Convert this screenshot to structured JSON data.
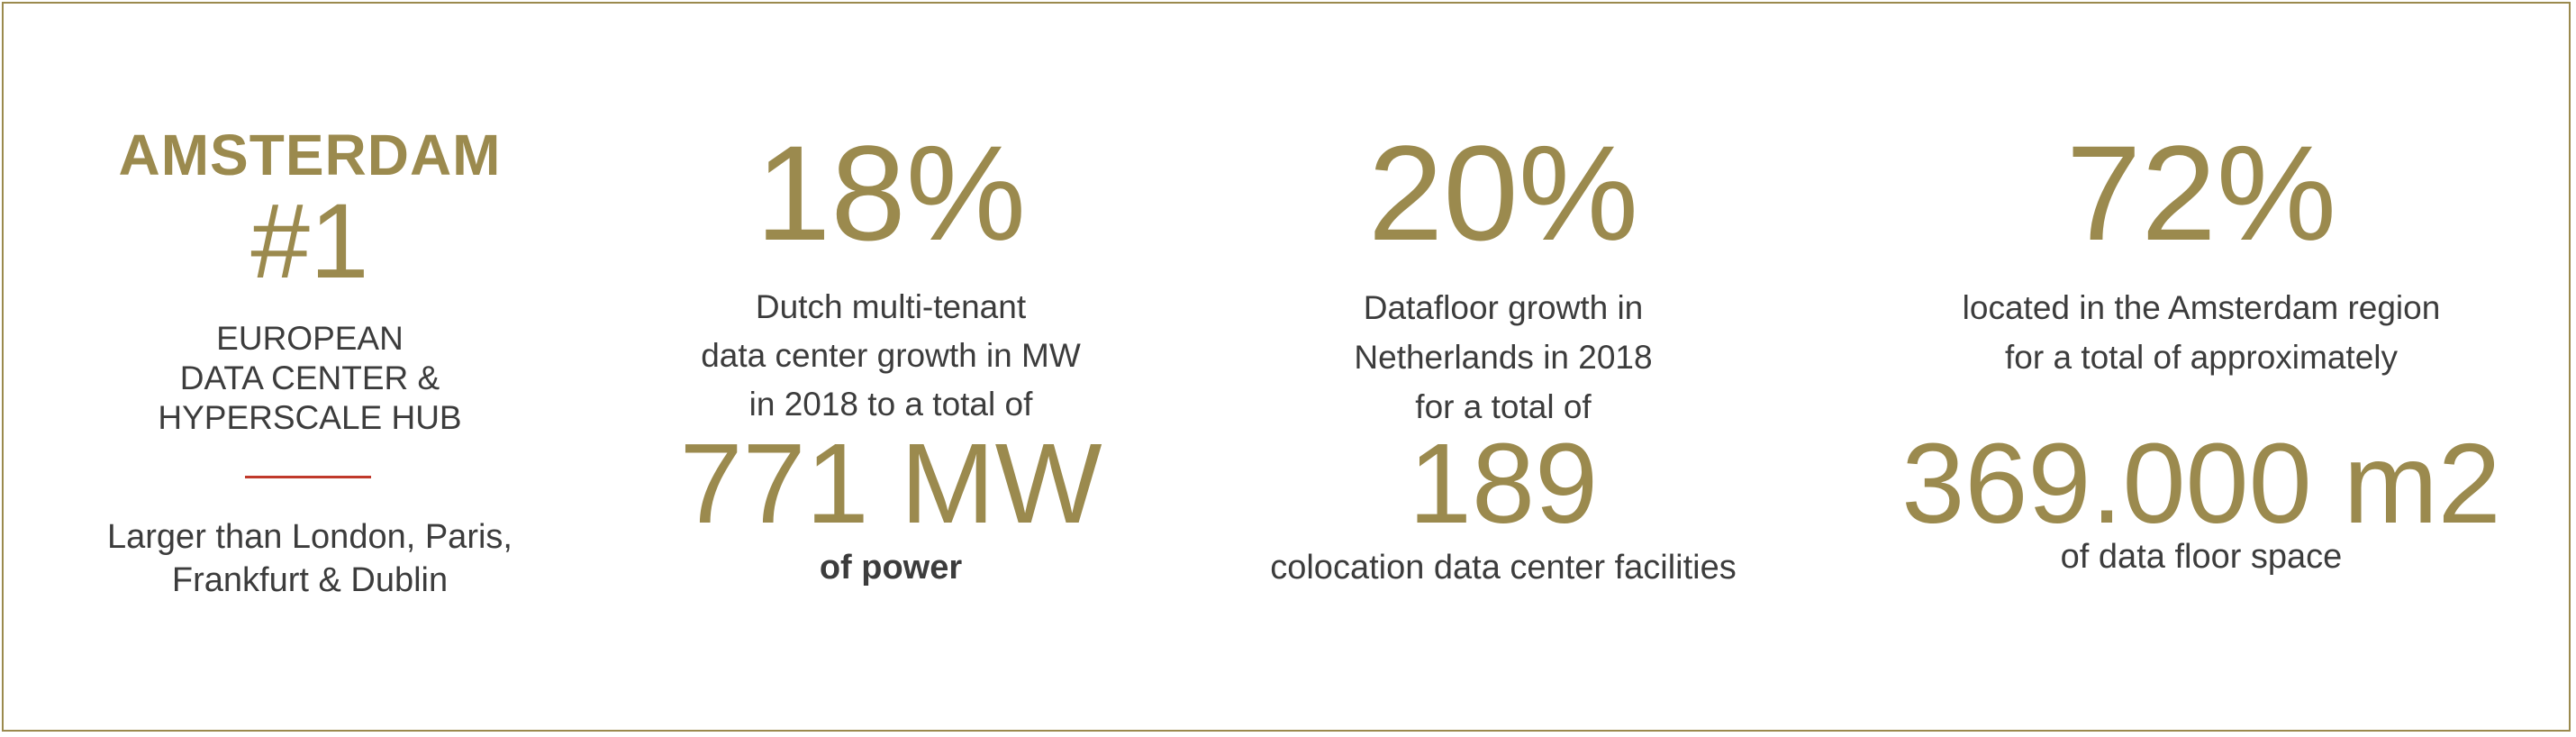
{
  "brand": {
    "accent_color": "#9b8a4e",
    "text_color": "#3c3c3c",
    "divider_color": "#c0392b"
  },
  "amsterdam": {
    "city": "AMSTERDAM",
    "rank": "#1",
    "hub_lines": [
      "EUROPEAN",
      "DATA CENTER &",
      "HYPERSCALE HUB"
    ],
    "compare_lines": [
      "Larger than London, Paris,",
      "Frankfurt & Dublin"
    ]
  },
  "power": {
    "percent": "18%",
    "desc_lines": [
      "Dutch multi-tenant",
      "data center growth in MW",
      "in 2018 to a total of"
    ],
    "value": "771 MW",
    "caption": "of power"
  },
  "datafloor": {
    "percent": "20%",
    "desc_lines": [
      "Datafloor growth in",
      "Netherlands in 2018",
      "for a total of"
    ],
    "value": "189",
    "caption": "colocation data center facilities"
  },
  "region": {
    "percent": "72%",
    "desc_lines": [
      "located in the Amsterdam region",
      "for a total of approximately"
    ],
    "value": "369.000 m2",
    "caption": "of data floor space"
  }
}
